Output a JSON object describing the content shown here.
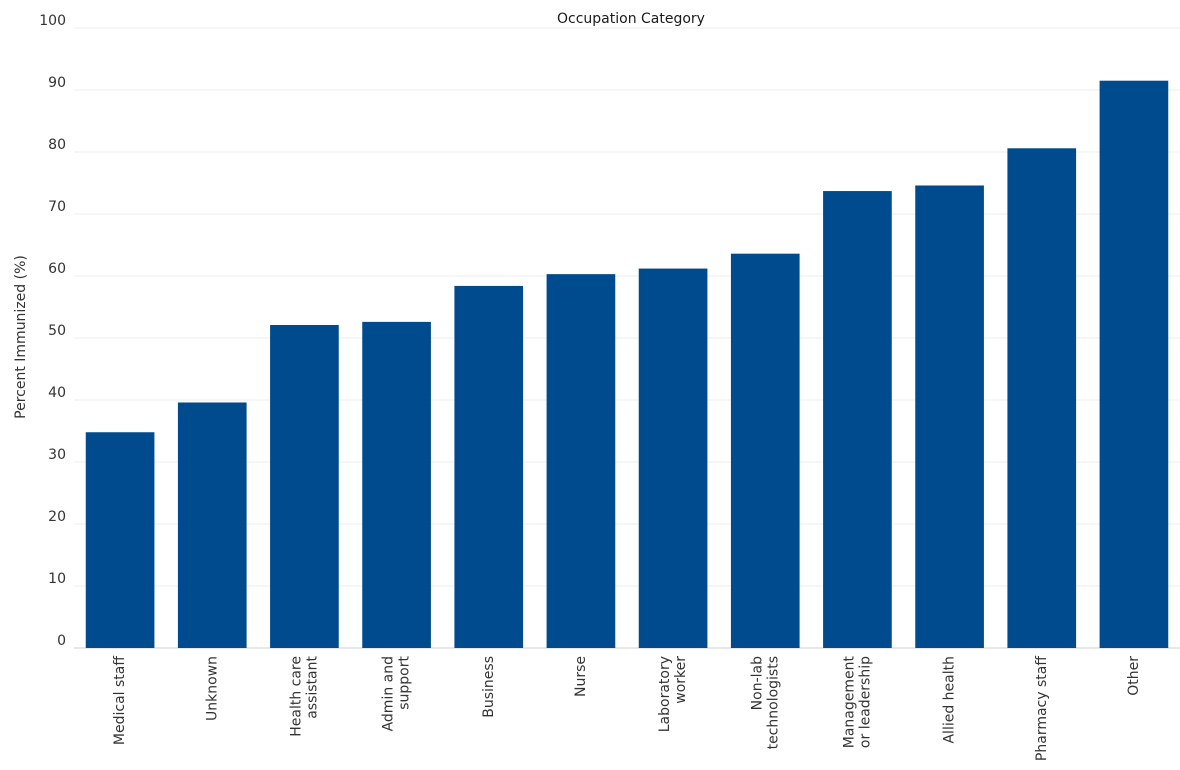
{
  "chart_data": {
    "type": "bar",
    "title": "Occupation Category",
    "xlabel": "",
    "ylabel": "Percent Immunized (%)",
    "ylim": [
      0,
      100
    ],
    "yticks": [
      0,
      10,
      20,
      30,
      40,
      50,
      60,
      70,
      80,
      90,
      100
    ],
    "grid": true,
    "bar_color": "#004B8D",
    "categories": [
      [
        "Medical staff"
      ],
      [
        "Unknown"
      ],
      [
        "Health care",
        "assistant"
      ],
      [
        "Admin and",
        "support"
      ],
      [
        "Business"
      ],
      [
        "Nurse"
      ],
      [
        "Laboratory",
        "worker"
      ],
      [
        "Non-lab",
        "technologists"
      ],
      [
        "Management",
        "or leadership"
      ],
      [
        "Allied health"
      ],
      [
        "Pharmacy staff"
      ],
      [
        "Other"
      ]
    ],
    "values": [
      34.8,
      39.6,
      52.1,
      52.6,
      58.4,
      60.3,
      61.2,
      63.6,
      73.7,
      74.6,
      80.6,
      91.5
    ]
  }
}
